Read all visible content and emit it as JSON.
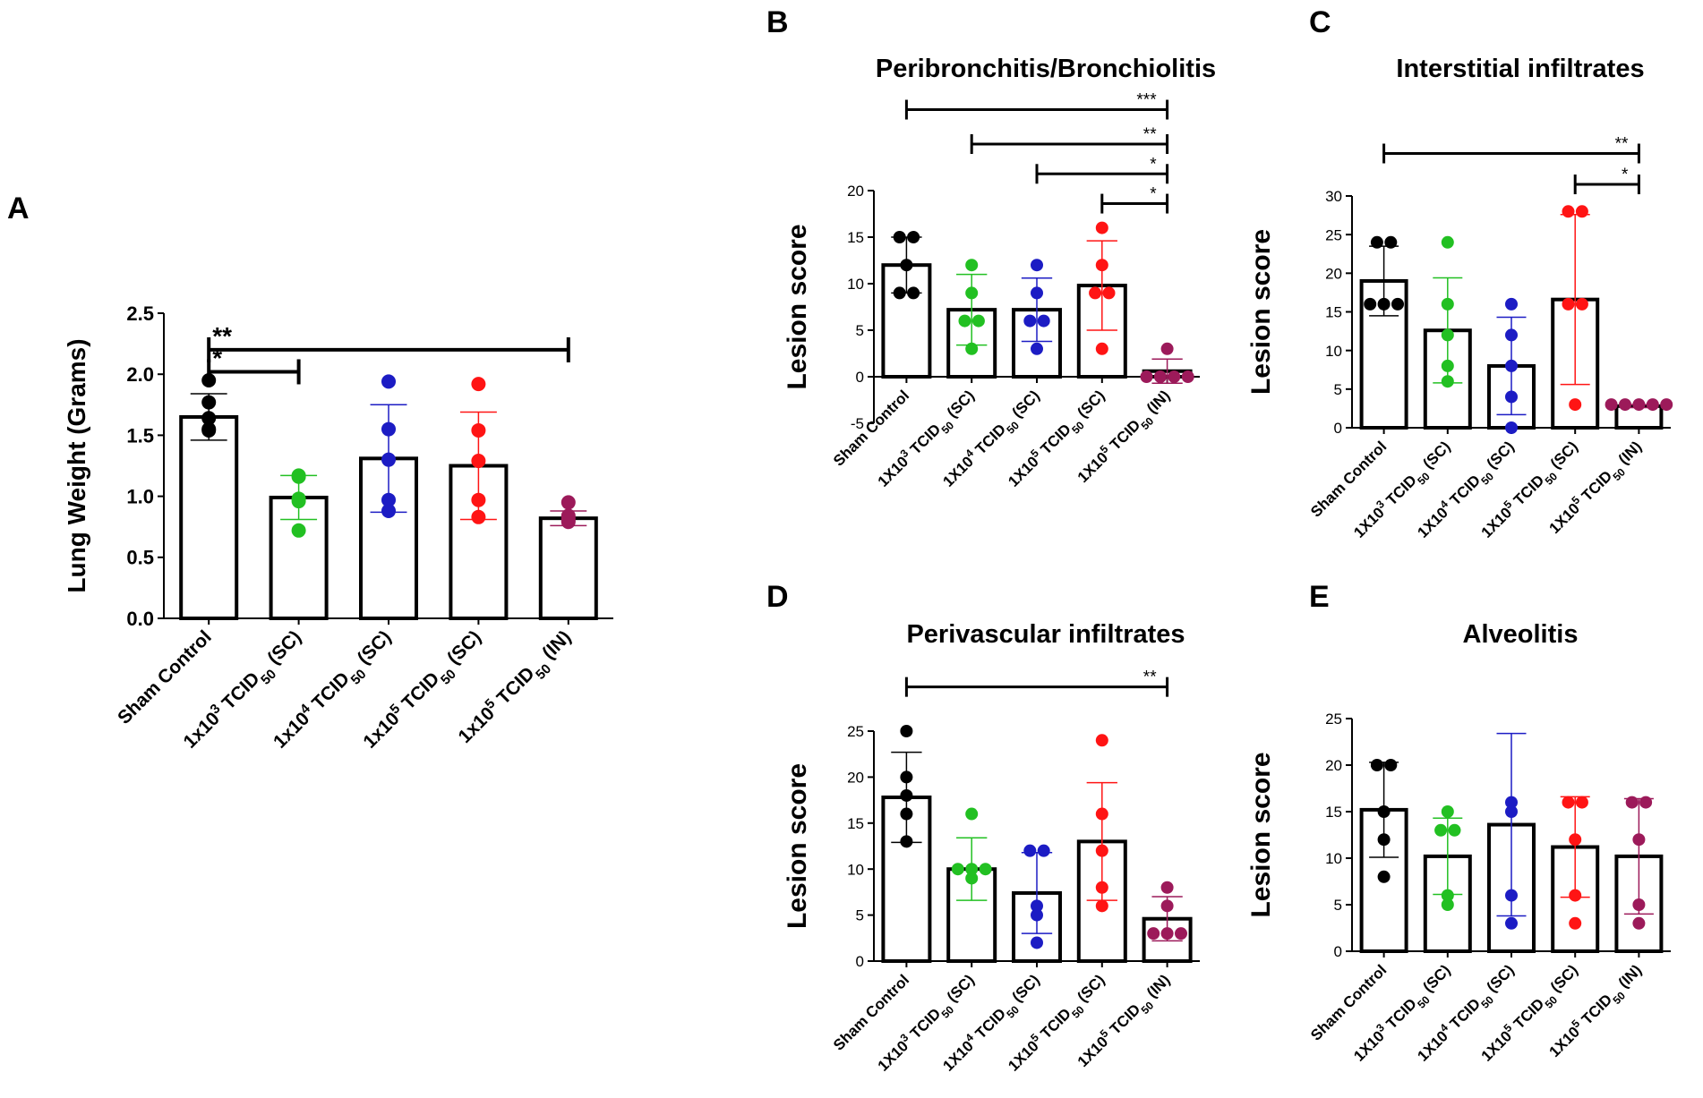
{
  "figure": {
    "description_labels": [
      "A",
      "B",
      "C",
      "D",
      "E"
    ]
  },
  "colors": {
    "axis": "#000000",
    "groups": [
      "#000000",
      "#22c022",
      "#1c1cc4",
      "#ff1414",
      "#9c1a5a"
    ]
  },
  "chart_data": [
    {
      "panel": "A",
      "type": "bar",
      "title": "",
      "xlabel": "",
      "ylabel": "Lung Weight (Grams)",
      "ylim": [
        0,
        2.5
      ],
      "yticks": [
        0.0,
        0.5,
        1.0,
        1.5,
        2.0,
        2.5
      ],
      "ytick_labels": [
        "0.0",
        "0.5",
        "1.0",
        "1.5",
        "2.0",
        "2.5"
      ],
      "categories": [
        {
          "pre": "Sham Control",
          "sup": "",
          "mid": "",
          "sub": "",
          "post": ""
        },
        {
          "pre": "1x10",
          "sup": "3",
          "mid": " TCID",
          "sub": "50",
          "post": " (SC)"
        },
        {
          "pre": "1x10",
          "sup": "4",
          "mid": " TCID",
          "sub": "50",
          "post": " (SC)"
        },
        {
          "pre": "1x10",
          "sup": "5",
          "mid": " TCID",
          "sub": "50",
          "post": " (SC)"
        },
        {
          "pre": "1x10",
          "sup": "5",
          "mid": " TCID",
          "sub": "50",
          "post": " (IN)"
        }
      ],
      "means": [
        1.65,
        0.99,
        1.31,
        1.25,
        0.82
      ],
      "sd": [
        0.19,
        0.18,
        0.44,
        0.44,
        0.06
      ],
      "points": [
        [
          1.95,
          1.77,
          1.64,
          1.55,
          1.54
        ],
        [
          1.17,
          1.16,
          0.98,
          0.96,
          0.72
        ],
        [
          1.94,
          1.55,
          1.3,
          0.97,
          0.88
        ],
        [
          1.92,
          1.54,
          1.29,
          0.97,
          0.83
        ],
        [
          0.95,
          0.84,
          0.82,
          0.8,
          0.79
        ]
      ],
      "significance": [
        {
          "from": 0,
          "to": 4,
          "label": "**",
          "y": 2.2
        },
        {
          "from": 0,
          "to": 1,
          "label": "*",
          "y": 2.02
        }
      ]
    },
    {
      "panel": "B",
      "type": "bar",
      "title": "Peribronchitis/Bronchiolitis",
      "xlabel": "",
      "ylabel": "Lesion score",
      "ylim": [
        -5,
        20
      ],
      "yticks": [
        -5,
        0,
        5,
        10,
        15,
        20
      ],
      "ytick_labels": [
        "-5",
        "0",
        "5",
        "10",
        "15",
        "20"
      ],
      "categories": [
        {
          "pre": "Sham Control",
          "sup": "",
          "mid": "",
          "sub": "",
          "post": ""
        },
        {
          "pre": "1X10",
          "sup": "3",
          "mid": " TCID",
          "sub": "50",
          "post": " (SC)"
        },
        {
          "pre": "1X10",
          "sup": "4",
          "mid": " TCID",
          "sub": "50",
          "post": " (SC)"
        },
        {
          "pre": "1X10",
          "sup": "5",
          "mid": " TCID",
          "sub": "50",
          "post": " (SC)"
        },
        {
          "pre": "1X10",
          "sup": "5",
          "mid": " TCID",
          "sub": "50",
          "post": " (IN)"
        }
      ],
      "means": [
        12,
        7.2,
        7.2,
        9.8,
        0.6
      ],
      "sd": [
        3.0,
        3.8,
        3.4,
        4.8,
        1.3
      ],
      "points": [
        [
          15,
          15,
          12,
          9,
          9
        ],
        [
          12,
          9,
          6,
          6,
          3
        ],
        [
          12,
          9,
          6,
          6,
          3
        ],
        [
          16,
          12,
          9,
          9,
          3
        ],
        [
          3,
          0,
          0,
          0,
          0
        ]
      ],
      "significance": [
        {
          "from": 0,
          "to": 4,
          "label": "***",
          "y": 28.7
        },
        {
          "from": 1,
          "to": 4,
          "label": "**",
          "y": 25.0
        },
        {
          "from": 2,
          "to": 4,
          "label": "*",
          "y": 21.8
        },
        {
          "from": 3,
          "to": 4,
          "label": "*",
          "y": 18.6
        }
      ]
    },
    {
      "panel": "C",
      "type": "bar",
      "title": "Interstitial infiltrates",
      "xlabel": "",
      "ylabel": "Lesion score",
      "ylim": [
        0,
        30
      ],
      "yticks": [
        0,
        5,
        10,
        15,
        20,
        25,
        30
      ],
      "ytick_labels": [
        "0",
        "5",
        "10",
        "15",
        "20",
        "25",
        "30"
      ],
      "categories": [
        {
          "pre": "Sham Control",
          "sup": "",
          "mid": "",
          "sub": "",
          "post": ""
        },
        {
          "pre": "1X10",
          "sup": "3",
          "mid": " TCID",
          "sub": "50",
          "post": " (SC)"
        },
        {
          "pre": "1X10",
          "sup": "4",
          "mid": " TCID",
          "sub": "50",
          "post": " (SC)"
        },
        {
          "pre": "1X10",
          "sup": "5",
          "mid": " TCID",
          "sub": "50",
          "post": " (SC)"
        },
        {
          "pre": "1X10",
          "sup": "5",
          "mid": " TCID",
          "sub": "50",
          "post": " (IN)"
        }
      ],
      "means": [
        19,
        12.6,
        8,
        16.6,
        2.8
      ],
      "sd": [
        4.5,
        6.8,
        6.3,
        11.0,
        0.2
      ],
      "points": [
        [
          24,
          24,
          16,
          16,
          16
        ],
        [
          24,
          16,
          12,
          8,
          6
        ],
        [
          16,
          12,
          8,
          4,
          0
        ],
        [
          28,
          28,
          16,
          16,
          3
        ],
        [
          3,
          3,
          3,
          3,
          3
        ]
      ],
      "significance": [
        {
          "from": 0,
          "to": 4,
          "label": "**",
          "y": 35.5
        },
        {
          "from": 3,
          "to": 4,
          "label": "*",
          "y": 31.5
        }
      ]
    },
    {
      "panel": "D",
      "type": "bar",
      "title": "Perivascular infiltrates",
      "xlabel": "",
      "ylabel": "Lesion score",
      "ylim": [
        0,
        25
      ],
      "yticks": [
        0,
        5,
        10,
        15,
        20,
        25
      ],
      "ytick_labels": [
        "0",
        "5",
        "10",
        "15",
        "20",
        "25"
      ],
      "categories": [
        {
          "pre": "Sham Control",
          "sup": "",
          "mid": "",
          "sub": "",
          "post": ""
        },
        {
          "pre": "1X10",
          "sup": "3",
          "mid": " TCID",
          "sub": "50",
          "post": " (SC)"
        },
        {
          "pre": "1X10",
          "sup": "4",
          "mid": " TCID",
          "sub": "50",
          "post": " (SC)"
        },
        {
          "pre": "1X10",
          "sup": "5",
          "mid": " TCID",
          "sub": "50",
          "post": " (SC)"
        },
        {
          "pre": "1X10",
          "sup": "5",
          "mid": " TCID",
          "sub": "50",
          "post": " (IN)"
        }
      ],
      "means": [
        17.8,
        10,
        7.4,
        13,
        4.6
      ],
      "sd": [
        4.9,
        3.4,
        4.4,
        6.4,
        2.4
      ],
      "points": [
        [
          25,
          20,
          18,
          16,
          13
        ],
        [
          16,
          10,
          10,
          10,
          9
        ],
        [
          12,
          12,
          6,
          5,
          2
        ],
        [
          24,
          16,
          12,
          8,
          6
        ],
        [
          8,
          6,
          3,
          3,
          3
        ]
      ],
      "significance": [
        {
          "from": 0,
          "to": 4,
          "label": "**",
          "y": 29.8
        }
      ]
    },
    {
      "panel": "E",
      "type": "bar",
      "title": "Alveolitis",
      "xlabel": "",
      "ylabel": "Lesion score",
      "ylim": [
        0,
        25
      ],
      "yticks": [
        0,
        5,
        10,
        15,
        20,
        25
      ],
      "ytick_labels": [
        "0",
        "5",
        "10",
        "15",
        "20",
        "25"
      ],
      "categories": [
        {
          "pre": "Sham Control",
          "sup": "",
          "mid": "",
          "sub": "",
          "post": ""
        },
        {
          "pre": "1X10",
          "sup": "3",
          "mid": " TCID",
          "sub": "50",
          "post": " (SC)"
        },
        {
          "pre": "1X10",
          "sup": "4",
          "mid": " TCID",
          "sub": "50",
          "post": " (SC)"
        },
        {
          "pre": "1X10",
          "sup": "5",
          "mid": " TCID",
          "sub": "50",
          "post": " (SC)"
        },
        {
          "pre": "1X10",
          "sup": "5",
          "mid": " TCID",
          "sub": "50",
          "post": " (IN)"
        }
      ],
      "means": [
        15.2,
        10.2,
        13.6,
        11.2,
        10.2
      ],
      "sd": [
        5.1,
        4.1,
        9.8,
        5.4,
        6.2
      ],
      "points": [
        [
          20,
          20,
          15,
          12,
          8
        ],
        [
          15,
          13,
          13,
          6,
          5
        ],
        [
          16,
          15,
          6,
          3
        ],
        [
          16,
          16,
          12,
          6,
          3
        ],
        [
          16,
          16,
          12,
          5,
          3
        ]
      ],
      "significance": []
    }
  ]
}
